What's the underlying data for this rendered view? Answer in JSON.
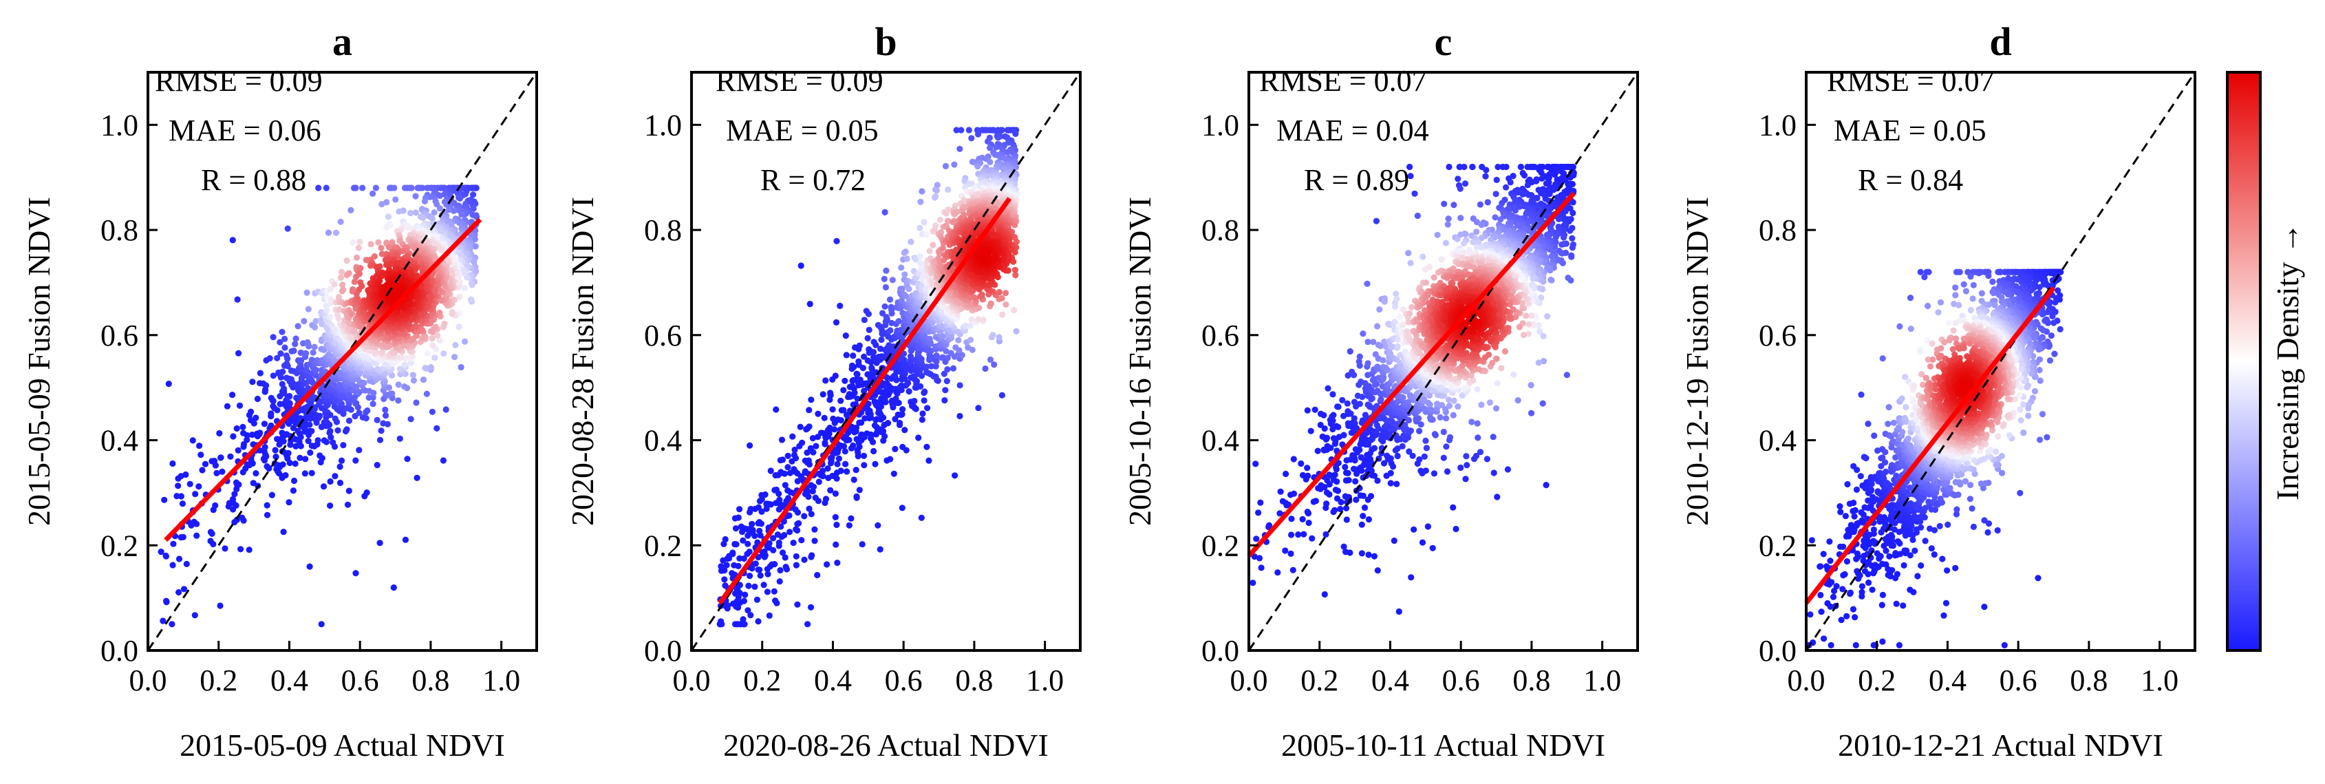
{
  "colors": {
    "low": "#1a1aff",
    "mid": "#ffffff",
    "high": "#e60000",
    "fit_line": "#ff0000",
    "axes": "#000000"
  },
  "colorbar": {
    "label": "Increasing Density →"
  },
  "chart_data": [
    {
      "type": "scatter",
      "panel": "a",
      "xlabel": "2015-05-09 Actual NDVI",
      "ylabel": "2015-05-09 Fusion NDVI",
      "xlim": [
        0.0,
        1.1
      ],
      "ylim": [
        0.0,
        1.1
      ],
      "xticks": [
        "0.0",
        "0.2",
        "0.4",
        "0.6",
        "0.8",
        "1.0"
      ],
      "yticks": [
        "0.0",
        "0.2",
        "0.4",
        "0.6",
        "0.8",
        "1.0"
      ],
      "stats": [
        "RMSE = 0.09",
        "MAE = 0.06",
        "R = 0.88"
      ],
      "fit_line": {
        "x": [
          0.05,
          0.94
        ],
        "y": [
          0.21,
          0.82
        ]
      },
      "reference_line": "1:1 dashed",
      "point_cloud": {
        "x_range": [
          0.03,
          0.93
        ],
        "y_range": [
          0.05,
          0.88
        ],
        "density_center": [
          0.7,
          0.68
        ],
        "point_count": 2600
      }
    },
    {
      "type": "scatter",
      "panel": "b",
      "xlabel": "2020-08-26 Actual NDVI",
      "ylabel": "2020-08-28 Fusion NDVI",
      "xlim": [
        0.0,
        1.1
      ],
      "ylim": [
        0.0,
        1.1
      ],
      "xticks": [
        "0.0",
        "0.2",
        "0.4",
        "0.6",
        "0.8",
        "1.0"
      ],
      "yticks": [
        "0.0",
        "0.2",
        "0.4",
        "0.6",
        "0.8",
        "1.0"
      ],
      "stats": [
        "RMSE = 0.09",
        "MAE = 0.05",
        "R = 0.72"
      ],
      "fit_line": {
        "x": [
          0.08,
          0.9
        ],
        "y": [
          0.09,
          0.86
        ]
      },
      "reference_line": "1:1 dashed",
      "point_cloud": {
        "x_range": [
          0.08,
          0.92
        ],
        "y_range": [
          0.05,
          0.99
        ],
        "density_center": [
          0.83,
          0.75
        ],
        "point_count": 2600
      }
    },
    {
      "type": "scatter",
      "panel": "c",
      "xlabel": "2005-10-11 Actual NDVI",
      "ylabel": "2005-10-16 Fusion NDVI",
      "xlim": [
        0.0,
        1.1
      ],
      "ylim": [
        0.0,
        1.1
      ],
      "xticks": [
        "0.0",
        "0.2",
        "0.4",
        "0.6",
        "0.8",
        "1.0"
      ],
      "yticks": [
        "0.0",
        "0.2",
        "0.4",
        "0.6",
        "0.8",
        "1.0"
      ],
      "stats": [
        "RMSE = 0.07",
        "MAE = 0.04",
        "R = 0.89"
      ],
      "fit_line": {
        "x": [
          0.0,
          0.92
        ],
        "y": [
          0.18,
          0.87
        ]
      },
      "reference_line": "1:1 dashed",
      "point_cloud": {
        "x_range": [
          0.01,
          0.92
        ],
        "y_range": [
          0.02,
          0.92
        ],
        "density_center": [
          0.62,
          0.63
        ],
        "point_count": 3000
      }
    },
    {
      "type": "scatter",
      "panel": "d",
      "xlabel": "2010-12-21 Actual NDVI",
      "ylabel": "2010-12-19 Fusion NDVI",
      "xlim": [
        0.0,
        1.1
      ],
      "ylim": [
        0.0,
        1.1
      ],
      "xticks": [
        "0.0",
        "0.2",
        "0.4",
        "0.6",
        "0.8",
        "1.0"
      ],
      "yticks": [
        "0.0",
        "0.2",
        "0.4",
        "0.6",
        "0.8",
        "1.0"
      ],
      "stats": [
        "RMSE = 0.07",
        "MAE = 0.05",
        "R = 0.84"
      ],
      "fit_line": {
        "x": [
          0.0,
          0.7
        ],
        "y": [
          0.09,
          0.69
        ]
      },
      "reference_line": "1:1 dashed",
      "point_cloud": {
        "x_range": [
          0.0,
          0.72
        ],
        "y_range": [
          0.01,
          0.72
        ],
        "density_center": [
          0.45,
          0.5
        ],
        "point_count": 3000
      }
    }
  ]
}
